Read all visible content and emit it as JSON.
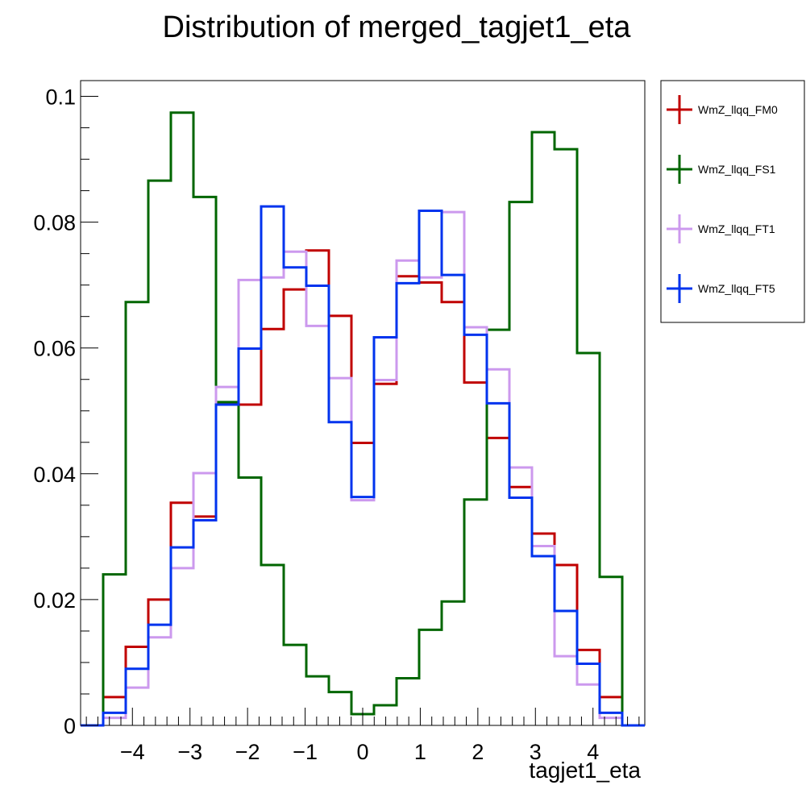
{
  "chart_data": {
    "type": "line",
    "title": "Distribution of merged_tagjet1_eta",
    "xlabel": "tagjet1_eta",
    "ylabel": "",
    "xlim": [
      -4.9,
      4.9
    ],
    "ylim": [
      0,
      0.1025
    ],
    "x_ticks": [
      -4,
      -3,
      -2,
      -1,
      0,
      1,
      2,
      3,
      4
    ],
    "x_tick_labels": [
      "−4",
      "−3",
      "−2",
      "−1",
      "0",
      "1",
      "2",
      "3",
      "4"
    ],
    "y_ticks": [
      0,
      0.02,
      0.04,
      0.06,
      0.08,
      0.1
    ],
    "y_tick_labels": [
      "0",
      "0.02",
      "0.04",
      "0.06",
      "0.08",
      "0.1"
    ],
    "bin_edges": [
      -4.9,
      -4.508,
      -4.116,
      -3.724,
      -3.332,
      -2.94,
      -2.548,
      -2.156,
      -1.764,
      -1.372,
      -0.98,
      -0.588,
      -0.196,
      0.196,
      0.588,
      0.98,
      1.372,
      1.764,
      2.156,
      2.548,
      2.94,
      3.332,
      3.724,
      4.116,
      4.508,
      4.9
    ],
    "grid": false,
    "legend_position": "right",
    "series": [
      {
        "name": "WmZ_llqq_FM0",
        "color": "#c00000",
        "values": [
          0,
          0.0045,
          0.0125,
          0.02,
          0.0354,
          0.0332,
          0.0512,
          0.051,
          0.063,
          0.0693,
          0.0755,
          0.0651,
          0.0449,
          0.0543,
          0.0714,
          0.0704,
          0.0673,
          0.0545,
          0.0457,
          0.0379,
          0.0305,
          0.0255,
          0.012,
          0.0045,
          0
        ]
      },
      {
        "name": "WmZ_llqq_FS1",
        "color": "#006600",
        "values": [
          0,
          0.024,
          0.0673,
          0.0866,
          0.0974,
          0.084,
          0.0514,
          0.0394,
          0.0255,
          0.0128,
          0.0078,
          0.0053,
          0.0018,
          0.0032,
          0.0075,
          0.0152,
          0.0197,
          0.0359,
          0.0629,
          0.0832,
          0.0943,
          0.0916,
          0.0592,
          0.0236,
          0
        ]
      },
      {
        "name": "WmZ_llqq_FT1",
        "color": "#cc99ee",
        "values": [
          0,
          0.0012,
          0.006,
          0.014,
          0.025,
          0.0401,
          0.0538,
          0.0708,
          0.0712,
          0.0753,
          0.0635,
          0.0552,
          0.0358,
          0.0549,
          0.0739,
          0.0712,
          0.0816,
          0.0633,
          0.0566,
          0.041,
          0.0285,
          0.011,
          0.0065,
          0.0012,
          0
        ]
      },
      {
        "name": "WmZ_llqq_FT5",
        "color": "#0033ee",
        "values": [
          0,
          0.002,
          0.009,
          0.016,
          0.0283,
          0.0326,
          0.051,
          0.0599,
          0.0825,
          0.0728,
          0.0699,
          0.0482,
          0.0363,
          0.0617,
          0.0703,
          0.0818,
          0.0716,
          0.0621,
          0.0512,
          0.0362,
          0.0269,
          0.0182,
          0.0098,
          0.002,
          0
        ]
      }
    ]
  }
}
